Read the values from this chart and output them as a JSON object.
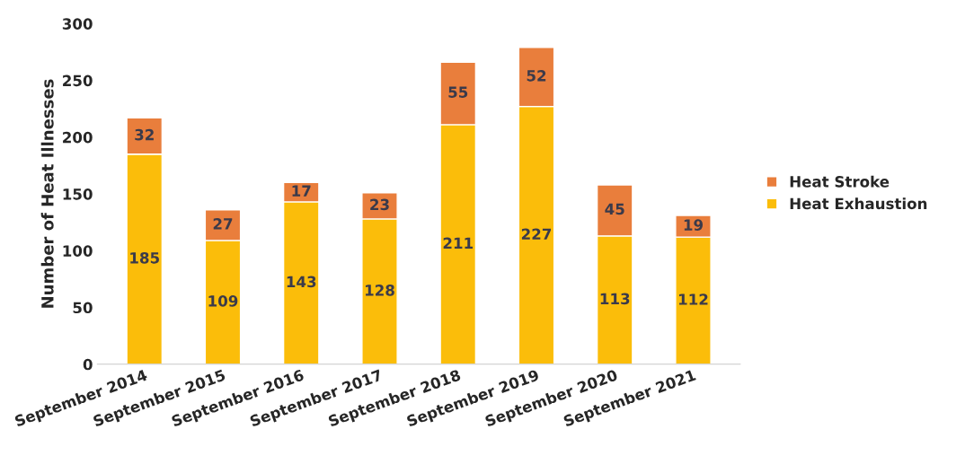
{
  "chart_data": {
    "type": "bar",
    "stacked": true,
    "ylabel": "Number of Heat Illnesses",
    "categories": [
      "September 2014",
      "September 2015",
      "September 2016",
      "September 2017",
      "September 2018",
      "September 2019",
      "September 2020",
      "September 2021"
    ],
    "series": [
      {
        "name": "Heat Exhaustion",
        "color": "#fbbd0a",
        "values": [
          185,
          109,
          143,
          128,
          211,
          227,
          113,
          112
        ]
      },
      {
        "name": "Heat Stroke",
        "color": "#e97e3c",
        "values": [
          32,
          27,
          17,
          23,
          55,
          52,
          45,
          19
        ]
      }
    ],
    "ylim": [
      0,
      300
    ],
    "yticks": [
      0,
      50,
      100,
      150,
      200,
      250,
      300
    ],
    "data_labels": true,
    "grid": false,
    "legend": "right"
  }
}
